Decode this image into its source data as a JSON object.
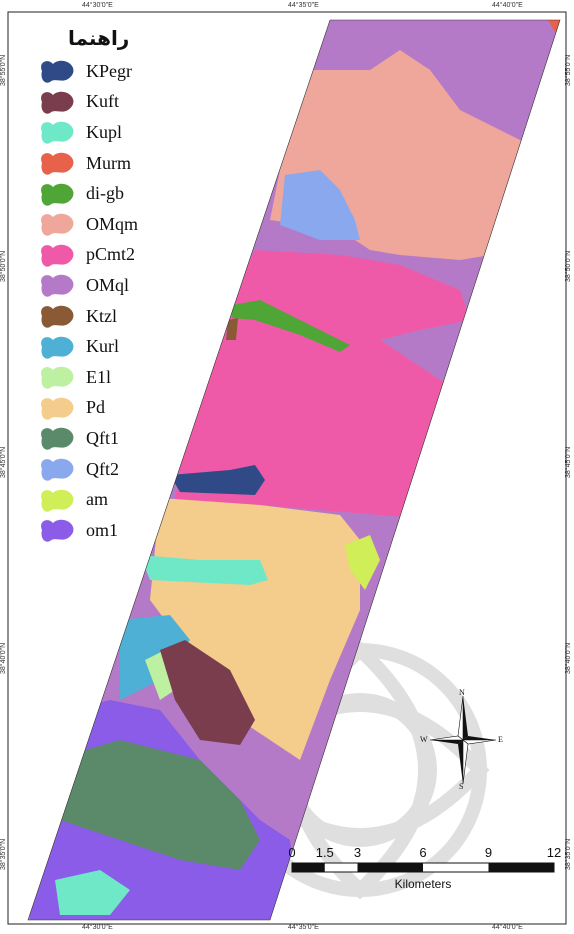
{
  "legend": {
    "title": "راهنما",
    "items": [
      {
        "code": "KPegr",
        "color": "#2f4a86"
      },
      {
        "code": "Kuft",
        "color": "#7a3d4d"
      },
      {
        "code": "Kupl",
        "color": "#6fe8c8"
      },
      {
        "code": "Murm",
        "color": "#e8614a"
      },
      {
        "code": "di-gb",
        "color": "#4fa636"
      },
      {
        "code": "OMqm",
        "color": "#f0a79b"
      },
      {
        "code": "pCmt2",
        "color": "#ef5aa8"
      },
      {
        "code": "OMql",
        "color": "#b47ac8"
      },
      {
        "code": "Ktzl",
        "color": "#8a5a36"
      },
      {
        "code": "Kurl",
        "color": "#4fb0d6"
      },
      {
        "code": "E1l",
        "color": "#bdf0a0"
      },
      {
        "code": "Pd",
        "color": "#f4cc8c"
      },
      {
        "code": "Qft1",
        "color": "#5b8a6a"
      },
      {
        "code": "Qft2",
        "color": "#8aa8ee"
      },
      {
        "code": "am",
        "color": "#cfee58"
      },
      {
        "code": "om1",
        "color": "#8a5ce8"
      }
    ]
  },
  "coordinates": {
    "top": [
      "44°30'0\"E",
      "44°35'0\"E",
      "44°40'0\"E"
    ],
    "bottom": [
      "44°30'0\"E",
      "44°35'0\"E",
      "44°40'0\"E"
    ],
    "left": [
      "38°55'0\"N",
      "38°50'0\"N",
      "38°45'0\"N",
      "38°40'0\"N",
      "38°35'0\"N"
    ],
    "right": [
      "38°55'0\"N",
      "38°50'0\"N",
      "38°45'0\"N",
      "38°40'0\"N",
      "38°35'0\"N"
    ]
  },
  "scale": {
    "ticks": [
      "0",
      "1.5",
      "3",
      "6",
      "9",
      "12"
    ],
    "unit": "Kilometers"
  },
  "compass": {
    "n": "N",
    "s": "S",
    "e": "E",
    "w": "W"
  }
}
